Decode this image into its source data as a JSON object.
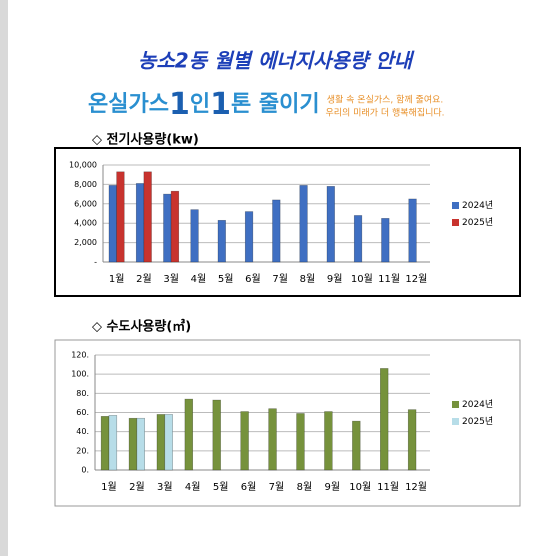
{
  "title": "농소2동 월별 에너지사용량 안내",
  "banner": {
    "parts": [
      "온실가스",
      "1",
      "인",
      "1",
      "톤 줄이기"
    ],
    "tagline": [
      "생활 속 온실가스, 함께 줄여요.",
      "우리의 미래가 더 행복해집니다."
    ]
  },
  "chart_data": [
    {
      "type": "bar",
      "title": "◇ 전기사용량(kw)",
      "categories": [
        "1월",
        "2월",
        "3월",
        "4월",
        "5월",
        "6월",
        "7월",
        "8월",
        "9월",
        "10월",
        "11월",
        "12월"
      ],
      "series": [
        {
          "name": "2024년",
          "color": "#3f6fc2",
          "values": [
            7900,
            8100,
            7000,
            5400,
            4300,
            5200,
            6400,
            7900,
            7800,
            4800,
            4500,
            6500
          ]
        },
        {
          "name": "2025년",
          "color": "#c8332e",
          "values": [
            9300,
            9300,
            7300,
            null,
            null,
            null,
            null,
            null,
            null,
            null,
            null,
            null
          ]
        }
      ],
      "ylim": [
        0,
        10000
      ],
      "yticks": [
        {
          "value": 0,
          "label": "-"
        },
        {
          "value": 2000,
          "label": "2,000"
        },
        {
          "value": 4000,
          "label": "4,000"
        },
        {
          "value": 6000,
          "label": "6,000"
        },
        {
          "value": 8000,
          "label": "8,000"
        },
        {
          "value": 10000,
          "label": "10,000"
        }
      ],
      "grid": true,
      "legend": "right"
    },
    {
      "type": "bar",
      "title": "◇ 수도사용량(㎥)",
      "categories": [
        "1월",
        "2월",
        "3월",
        "4월",
        "5월",
        "6월",
        "7월",
        "8월",
        "9월",
        "10월",
        "11월",
        "12월"
      ],
      "series": [
        {
          "name": "2024년",
          "color": "#76923c",
          "values": [
            56,
            54,
            58,
            74,
            73,
            61,
            64,
            59,
            61,
            51,
            106,
            63
          ]
        },
        {
          "name": "2025년",
          "color": "#b7dde8",
          "values": [
            57,
            54,
            58,
            null,
            null,
            null,
            null,
            null,
            null,
            null,
            null,
            null
          ]
        }
      ],
      "ylim": [
        0,
        120
      ],
      "yticks": [
        {
          "value": 0,
          "label": "0."
        },
        {
          "value": 20,
          "label": "20."
        },
        {
          "value": 40,
          "label": "40."
        },
        {
          "value": 60,
          "label": "60."
        },
        {
          "value": 80,
          "label": "80."
        },
        {
          "value": 100,
          "label": "100."
        },
        {
          "value": 120,
          "label": "120."
        }
      ],
      "grid": true,
      "legend": "right"
    }
  ]
}
